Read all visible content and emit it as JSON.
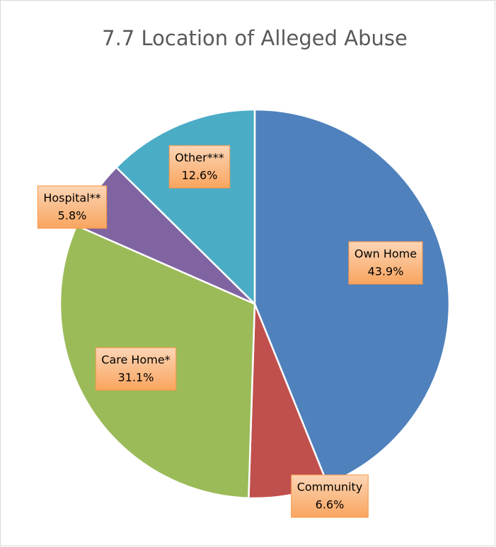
{
  "chart_data": {
    "type": "pie",
    "title": "7.7 Location of Alleged Abuse",
    "categories": [
      "Own Home",
      "Community",
      "Care Home*",
      "Hospital**",
      "Other***"
    ],
    "values": [
      43.9,
      6.6,
      31.1,
      5.8,
      12.6
    ],
    "value_labels": [
      "43.9%",
      "6.6%",
      "31.1%",
      "5.8%",
      "12.6%"
    ],
    "colors": [
      "#4f81bd",
      "#c0504d",
      "#9bbb59",
      "#8064a2",
      "#4bacc6"
    ]
  }
}
